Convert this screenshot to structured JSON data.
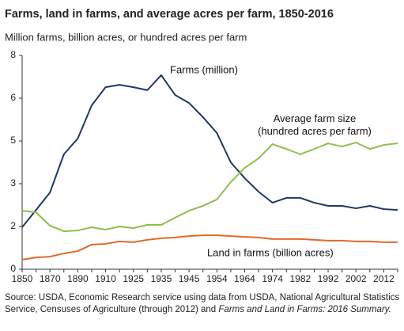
{
  "chart_data": {
    "type": "line",
    "title": "Farms, land in farms, and average acres per farm, 1850-2016",
    "subtitle": "Million farms, billion acres, or hundred acres per farm",
    "categories": [
      "1850",
      null,
      "1870",
      null,
      "1890",
      null,
      "1910",
      null,
      "1925",
      null,
      "1935",
      null,
      "1945",
      null,
      "1954",
      null,
      "1964",
      null,
      "1974",
      null,
      "1982",
      null,
      "1992",
      null,
      "2002",
      null,
      "2012",
      null
    ],
    "series": [
      {
        "name": "Farms (million)",
        "color": "#1f3864",
        "values": [
          1.57,
          2.22,
          2.87,
          4.3,
          4.89,
          6.13,
          6.81,
          6.9,
          6.81,
          6.7,
          7.26,
          6.52,
          6.22,
          5.69,
          5.1,
          4.0,
          3.41,
          2.9,
          2.49,
          2.67,
          2.67,
          2.49,
          2.37,
          2.37,
          2.28,
          2.37,
          2.25,
          2.22
        ]
      },
      {
        "name": "Average farm size (hundred acres per farm)",
        "color": "#8cbf4c",
        "values": [
          2.19,
          2.13,
          1.63,
          1.42,
          1.45,
          1.57,
          1.48,
          1.6,
          1.54,
          1.66,
          1.66,
          1.93,
          2.19,
          2.37,
          2.61,
          3.26,
          3.79,
          4.15,
          4.68,
          4.5,
          4.3,
          4.5,
          4.71,
          4.59,
          4.74,
          4.5,
          4.65,
          4.71
        ]
      },
      {
        "name": "Land in farms (billion acres)",
        "color": "#e06a2a",
        "values": [
          0.36,
          0.44,
          0.47,
          0.59,
          0.68,
          0.92,
          0.95,
          1.04,
          1.01,
          1.1,
          1.16,
          1.19,
          1.24,
          1.27,
          1.27,
          1.24,
          1.21,
          1.19,
          1.13,
          1.13,
          1.13,
          1.1,
          1.07,
          1.07,
          1.04,
          1.04,
          1.01,
          1.01
        ]
      }
    ],
    "ylim": [
      0,
      8
    ],
    "yticks": [
      0,
      {
        "value": 1.6,
        "label": "2"
      },
      {
        "value": 3.2,
        "label": "3"
      },
      {
        "value": 4.8,
        "label": "5"
      },
      {
        "value": 6.4,
        "label": "6"
      },
      8
    ],
    "source": [
      "Source: USDA, Economic Research service using data from USDA, National Agricultural Statistics Service, Censuses of Agriculture (through 2012) and ",
      "Farms and Land in Farms: 2016 Summary."
    ]
  }
}
